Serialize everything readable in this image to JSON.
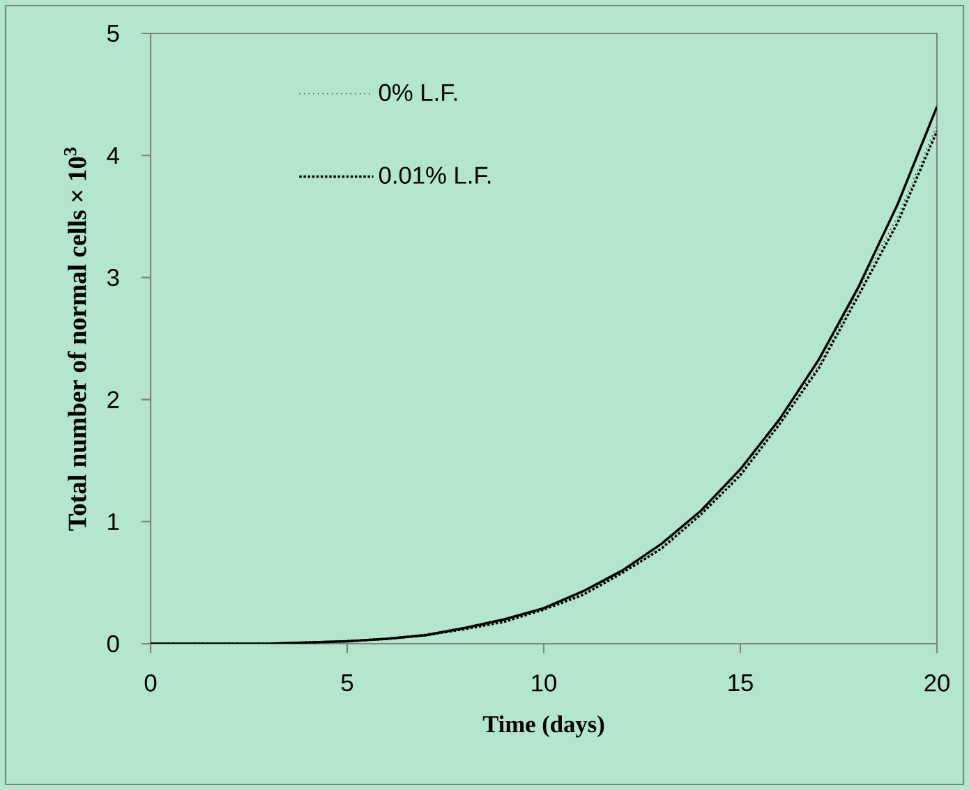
{
  "chart_data": {
    "type": "line",
    "xlabel": "Time (days)",
    "ylabel": "Total number of normal cells  × 10$^{3}$",
    "x": [
      0,
      1,
      2,
      3,
      4,
      5,
      6,
      7,
      8,
      9,
      10,
      11,
      12,
      13,
      14,
      15,
      16,
      17,
      18,
      19,
      20
    ],
    "xlim": [
      0,
      20
    ],
    "ylim": [
      0,
      5
    ],
    "xticks": [
      0,
      5,
      10,
      15,
      20
    ],
    "yticks": [
      0,
      1,
      2,
      3,
      4,
      5
    ],
    "legend": "top left",
    "series": [
      {
        "name": "0% L.F.",
        "color": "#000000",
        "line_style": "dotted",
        "values": [
          0,
          0,
          0,
          0,
          0.01,
          0.02,
          0.04,
          0.08,
          0.13,
          0.19,
          0.3,
          0.41,
          0.6,
          0.79,
          1.1,
          1.4,
          1.85,
          2.28,
          2.9,
          3.5,
          4.25
        ]
      },
      {
        "name": "0.01% L.F.",
        "color": "#000000",
        "line_style": "dotted",
        "values": [
          0,
          0,
          0,
          0,
          0.01,
          0.02,
          0.04,
          0.07,
          0.12,
          0.18,
          0.28,
          0.4,
          0.58,
          0.78,
          1.06,
          1.38,
          1.8,
          2.26,
          2.85,
          3.45,
          4.2
        ]
      },
      {
        "name": null,
        "color": "#000000",
        "line_style": "solid",
        "values": [
          0,
          0,
          0,
          0,
          0.01,
          0.02,
          0.04,
          0.07,
          0.13,
          0.2,
          0.29,
          0.43,
          0.6,
          0.82,
          1.09,
          1.43,
          1.84,
          2.33,
          2.92,
          3.6,
          4.4
        ]
      }
    ]
  }
}
